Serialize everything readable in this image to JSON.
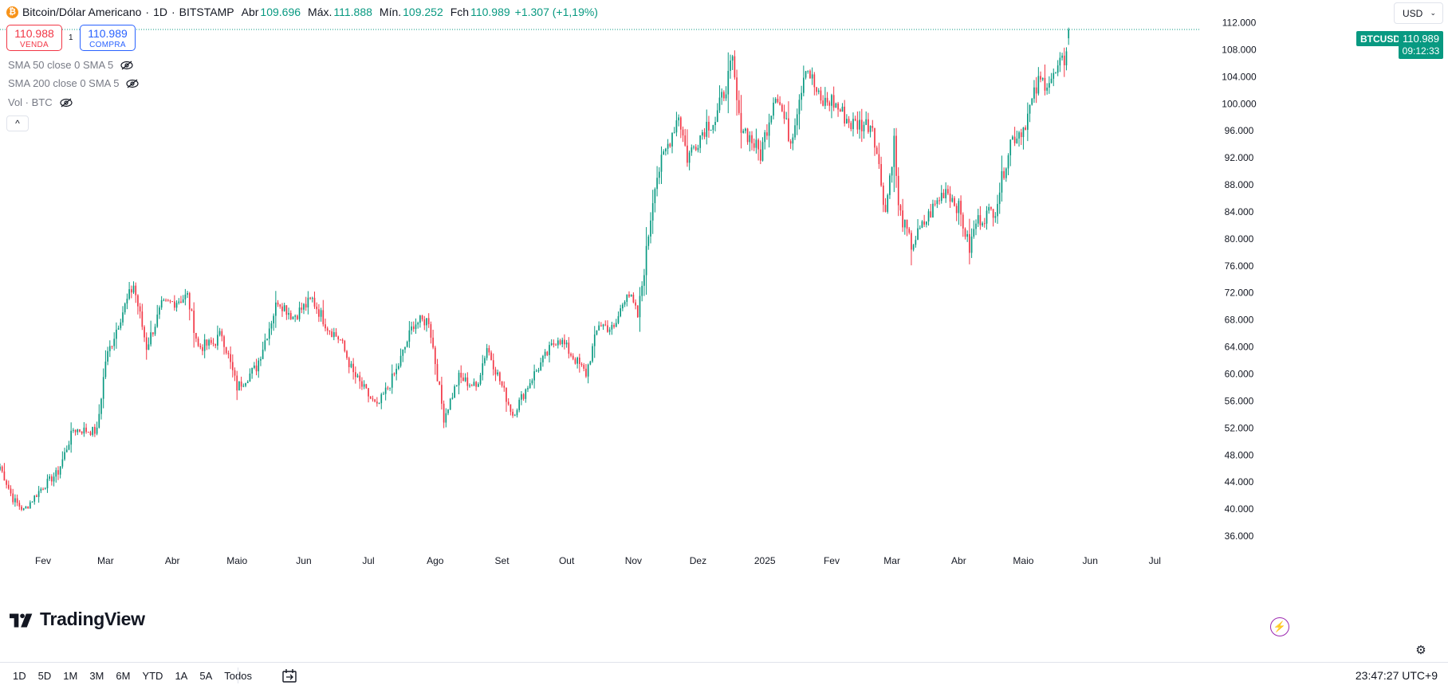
{
  "header": {
    "coin_symbol": "₿",
    "title": "Bitcoin/Dólar Americano",
    "interval": "1D",
    "exchange": "BITSTAMP",
    "ohlc": {
      "open_label": "Abr",
      "open": "109.696",
      "high_label": "Máx.",
      "high": "111.888",
      "low_label": "Mín.",
      "low": "109.252",
      "close_label": "Fch",
      "close": "110.989",
      "change": "+1.307 (+1,19%)"
    }
  },
  "trade": {
    "sell_price": "110.988",
    "sell_label": "VENDA",
    "spread": "1",
    "buy_price": "110.989",
    "buy_label": "COMPRA"
  },
  "indicators": [
    {
      "label": "SMA 50 close 0 SMA 5"
    },
    {
      "label": "SMA 200 close 0 SMA 5"
    },
    {
      "label": "Vol · BTC"
    }
  ],
  "collapse_glyph": "^",
  "currency": {
    "value": "USD",
    "chevron": "⌄"
  },
  "price_tag": {
    "symbol": "BTCUSD",
    "last": "110.989",
    "countdown": "09:12:33"
  },
  "brand": {
    "name": "TradingView"
  },
  "bolt_glyph": "⚡",
  "settings_glyph": "⚙",
  "ranges": [
    "1D",
    "5D",
    "1M",
    "3M",
    "6M",
    "YTD",
    "1A",
    "5A",
    "Todos"
  ],
  "clock": "23:47:27 UTC+9",
  "colors": {
    "up": "#089981",
    "down": "#f23645",
    "sell": "#f23645",
    "buy": "#2962ff",
    "accent": "#9c27b0"
  },
  "chart_data": {
    "type": "candlestick",
    "interval": "1D",
    "ylim": [
      34000,
      113000
    ],
    "y_ticks": [
      36000,
      40000,
      44000,
      48000,
      52000,
      56000,
      60000,
      64000,
      68000,
      72000,
      76000,
      80000,
      84000,
      88000,
      92000,
      96000,
      100000,
      104000,
      108000,
      112000
    ],
    "y_tick_labels": [
      "36.000",
      "40.000",
      "44.000",
      "48.000",
      "52.000",
      "56.000",
      "60.000",
      "64.000",
      "68.000",
      "72.000",
      "76.000",
      "80.000",
      "84.000",
      "88.000",
      "92.000",
      "96.000",
      "100.000",
      "104.000",
      "108.000",
      "112.000"
    ],
    "x_ticks": [
      {
        "label": "Fev",
        "date": "2024-02-01"
      },
      {
        "label": "Mar",
        "date": "2024-03-01"
      },
      {
        "label": "Abr",
        "date": "2024-04-01"
      },
      {
        "label": "Maio",
        "date": "2024-05-01"
      },
      {
        "label": "Jun",
        "date": "2024-06-01"
      },
      {
        "label": "Jul",
        "date": "2024-07-01"
      },
      {
        "label": "Ago",
        "date": "2024-08-01"
      },
      {
        "label": "Set",
        "date": "2024-09-01"
      },
      {
        "label": "Out",
        "date": "2024-10-01"
      },
      {
        "label": "Nov",
        "date": "2024-11-01"
      },
      {
        "label": "Dez",
        "date": "2024-12-01"
      },
      {
        "label": "2025",
        "date": "2025-01-01"
      },
      {
        "label": "Fev",
        "date": "2025-02-01"
      },
      {
        "label": "Mar",
        "date": "2025-03-01"
      },
      {
        "label": "Abr",
        "date": "2025-04-01"
      },
      {
        "label": "Maio",
        "date": "2025-05-01"
      },
      {
        "label": "Jun",
        "date": "2025-06-01"
      },
      {
        "label": "Jul",
        "date": "2025-07-01"
      }
    ],
    "x_range": [
      "2024-01-12",
      "2025-07-22"
    ],
    "last_close": 110989,
    "close_path": [
      [
        "2024-01-12",
        46300
      ],
      [
        "2024-01-18",
        41500
      ],
      [
        "2024-01-23",
        39800
      ],
      [
        "2024-01-31",
        43000
      ],
      [
        "2024-02-08",
        45500
      ],
      [
        "2024-02-15",
        51800
      ],
      [
        "2024-02-26",
        51500
      ],
      [
        "2024-03-01",
        62000
      ],
      [
        "2024-03-08",
        68500
      ],
      [
        "2024-03-14",
        73200
      ],
      [
        "2024-03-20",
        64000
      ],
      [
        "2024-03-27",
        70000
      ],
      [
        "2024-04-08",
        71500
      ],
      [
        "2024-04-13",
        64000
      ],
      [
        "2024-04-20",
        64500
      ],
      [
        "2024-04-24",
        66000
      ],
      [
        "2024-05-01",
        58000
      ],
      [
        "2024-05-10",
        61000
      ],
      [
        "2024-05-20",
        71000
      ],
      [
        "2024-05-27",
        68500
      ],
      [
        "2024-06-05",
        71000
      ],
      [
        "2024-06-12",
        67000
      ],
      [
        "2024-06-18",
        65000
      ],
      [
        "2024-06-24",
        60000
      ],
      [
        "2024-07-05",
        55000
      ],
      [
        "2024-07-14",
        60500
      ],
      [
        "2024-07-22",
        67500
      ],
      [
        "2024-07-29",
        68000
      ],
      [
        "2024-08-05",
        53500
      ],
      [
        "2024-08-12",
        59500
      ],
      [
        "2024-08-20",
        58000
      ],
      [
        "2024-08-25",
        64000
      ],
      [
        "2024-09-06",
        54000
      ],
      [
        "2024-09-15",
        59500
      ],
      [
        "2024-09-27",
        65500
      ],
      [
        "2024-10-10",
        60000
      ],
      [
        "2024-10-16",
        67500
      ],
      [
        "2024-10-23",
        66500
      ],
      [
        "2024-10-29",
        72500
      ],
      [
        "2024-11-03",
        68500
      ],
      [
        "2024-11-06",
        75500
      ],
      [
        "2024-11-11",
        88500
      ],
      [
        "2024-11-22",
        98500
      ],
      [
        "2024-11-26",
        92000
      ],
      [
        "2024-12-05",
        97000
      ],
      [
        "2024-12-09",
        97500
      ],
      [
        "2024-12-17",
        106000
      ],
      [
        "2024-12-20",
        97500
      ],
      [
        "2024-12-30",
        92500
      ],
      [
        "2025-01-06",
        102000
      ],
      [
        "2025-01-13",
        94500
      ],
      [
        "2025-01-20",
        106000
      ],
      [
        "2025-01-27",
        100000
      ],
      [
        "2025-02-01",
        100500
      ],
      [
        "2025-02-10",
        97000
      ],
      [
        "2025-02-20",
        97000
      ],
      [
        "2025-02-26",
        84000
      ],
      [
        "2025-03-02",
        94500
      ],
      [
        "2025-03-04",
        84500
      ],
      [
        "2025-03-10",
        79000
      ],
      [
        "2025-03-20",
        84500
      ],
      [
        "2025-03-26",
        87500
      ],
      [
        "2025-04-01",
        84500
      ],
      [
        "2025-04-06",
        78500
      ],
      [
        "2025-04-09",
        82500
      ],
      [
        "2025-04-18",
        84500
      ],
      [
        "2025-04-25",
        94500
      ],
      [
        "2025-05-01",
        96500
      ],
      [
        "2025-05-08",
        103000
      ],
      [
        "2025-05-15",
        103800
      ],
      [
        "2025-05-20",
        106500
      ],
      [
        "2025-05-22",
        110989
      ]
    ]
  }
}
